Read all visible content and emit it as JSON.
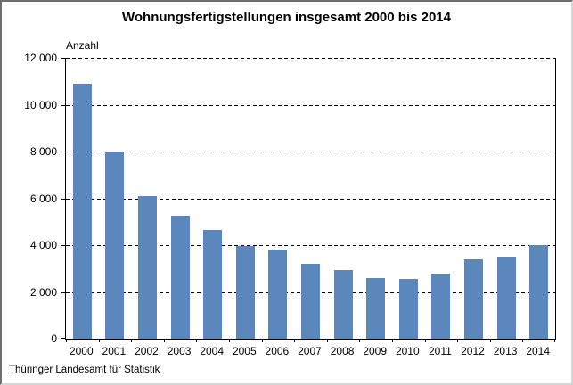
{
  "title": "Wohnungsfertigstellungen insgesamt 2000 bis 2014",
  "footer": "Thüringer Landesamt für Statistik",
  "colors": {
    "bar": "#5b87bd",
    "axis": "#000000",
    "gridline": "#000000",
    "background": "#ffffff",
    "frame_dark": "#6e6e6e",
    "frame_light": "#d6d6d6"
  },
  "chart_data": {
    "type": "bar",
    "title": "Wohnungsfertigstellungen insgesamt 2000 bis 2014",
    "xlabel": "",
    "ylabel": "Anzahl",
    "categories": [
      "2000",
      "2001",
      "2002",
      "2003",
      "2004",
      "2005",
      "2006",
      "2007",
      "2008",
      "2009",
      "2010",
      "2011",
      "2012",
      "2013",
      "2014"
    ],
    "values": [
      10900,
      8000,
      6100,
      5250,
      4650,
      3950,
      3800,
      3200,
      2950,
      2600,
      2550,
      2800,
      3400,
      3500,
      4000
    ],
    "ylim": [
      0,
      12000
    ],
    "ytick_interval": 2000,
    "yticks": [
      {
        "value": 12000,
        "label": "12 000"
      },
      {
        "value": 10000,
        "label": "10 000"
      },
      {
        "value": 8000,
        "label": "8 000"
      },
      {
        "value": 6000,
        "label": "6 000"
      },
      {
        "value": 4000,
        "label": "4 000"
      },
      {
        "value": 2000,
        "label": "2 000"
      },
      {
        "value": 0,
        "label": "0"
      }
    ],
    "grid": "horizontal-dashed",
    "legend": "none",
    "source": "Thüringer Landesamt für Statistik"
  }
}
